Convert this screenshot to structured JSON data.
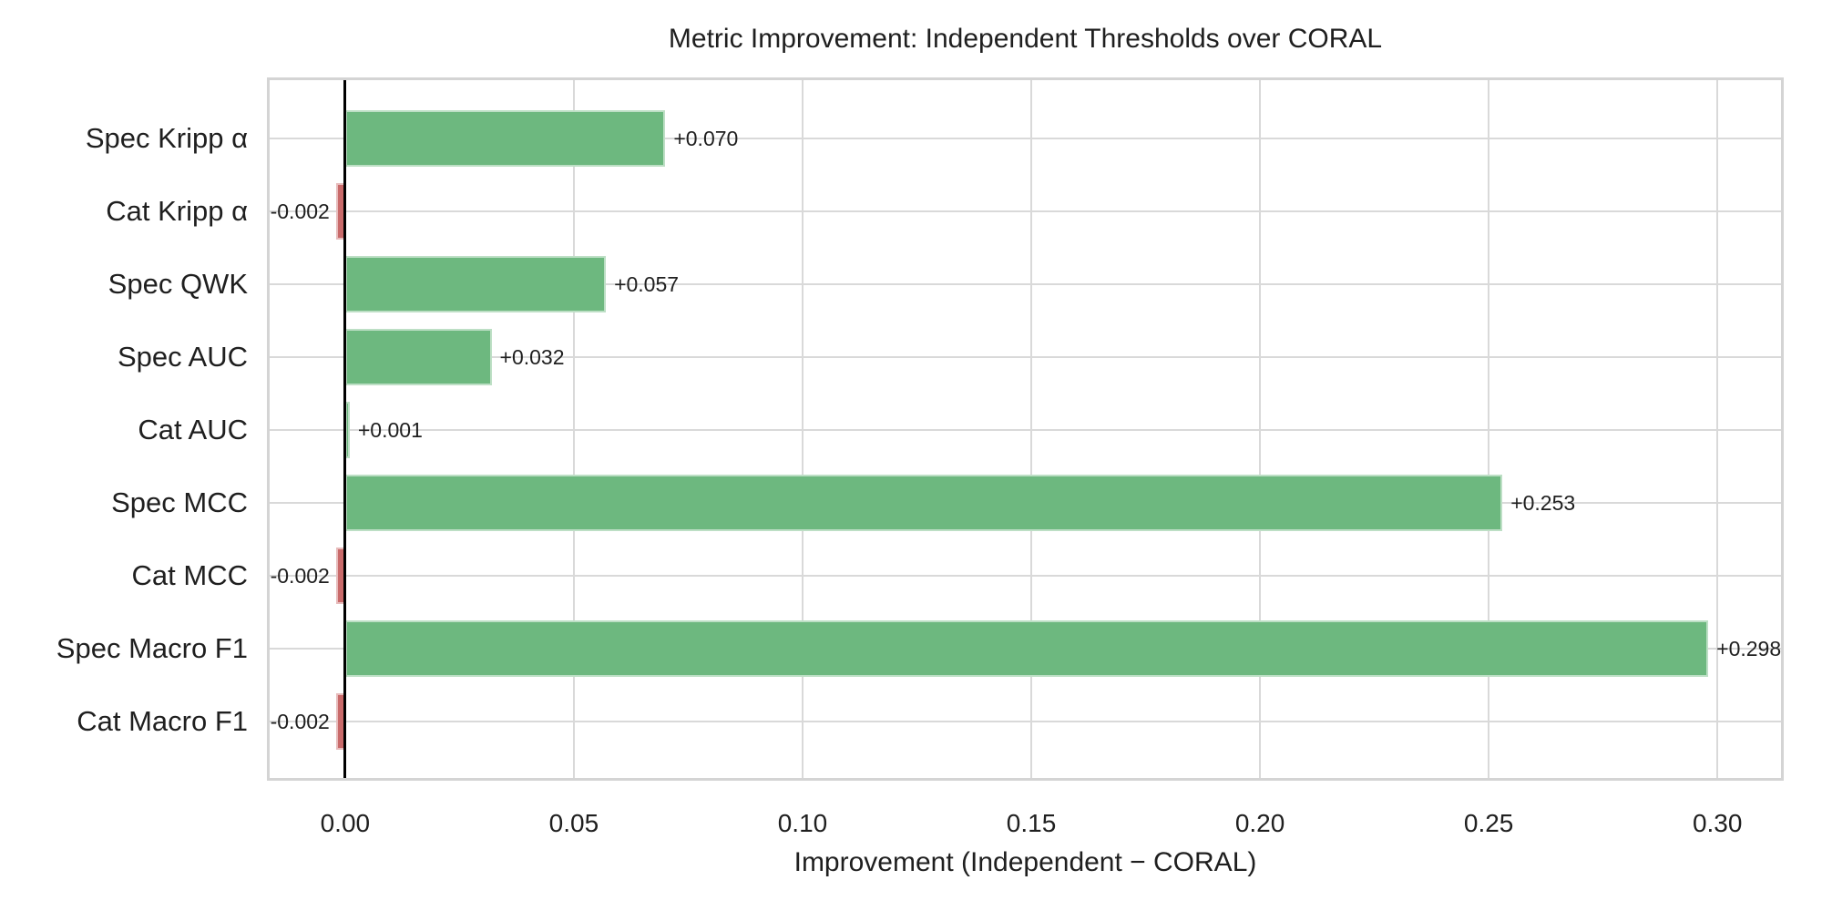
{
  "chart_data": {
    "type": "bar",
    "orientation": "horizontal",
    "title": "Metric Improvement: Independent Thresholds over CORAL",
    "xlabel": "Improvement (Independent − CORAL)",
    "ylabel": "",
    "categories": [
      "Spec Kripp α",
      "Cat Kripp α",
      "Spec QWK",
      "Spec AUC",
      "Cat AUC",
      "Spec MCC",
      "Cat MCC",
      "Spec Macro F1",
      "Cat Macro F1"
    ],
    "values": [
      0.07,
      -0.002,
      0.057,
      0.032,
      0.001,
      0.253,
      -0.002,
      0.298,
      -0.002
    ],
    "bar_labels": [
      "+0.070",
      "-0.002",
      "+0.057",
      "+0.032",
      "+0.001",
      "+0.253",
      "-0.002",
      "+0.298",
      "-0.002"
    ],
    "xlim": [
      -0.0171,
      0.3145
    ],
    "xticks": [
      0.0,
      0.05,
      0.1,
      0.15,
      0.2,
      0.25,
      0.3
    ],
    "xtick_labels": [
      "0.00",
      "0.05",
      "0.10",
      "0.15",
      "0.20",
      "0.25",
      "0.30"
    ],
    "grid": true,
    "zero_line": true,
    "legend": null,
    "colors": {
      "positive_bar": "#6db87f",
      "negative_bar": "#c96a6a",
      "grid": "#d9d9d9",
      "plot_border": "#d4d4d4",
      "zero_line": "#000000",
      "text": "#1f1f1f",
      "background": "#ffffff"
    }
  }
}
